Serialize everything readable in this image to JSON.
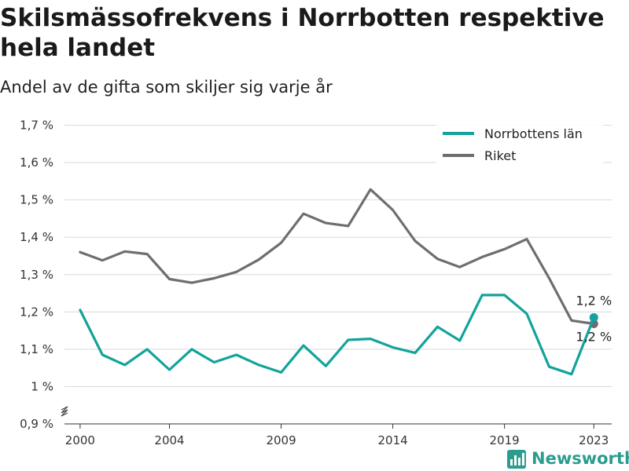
{
  "title": "Skilsmässofrekvens i Norrbotten respektive hela landet",
  "subtitle": "Andel av de gifta som skiljer sig varje år",
  "brand": {
    "name": "Newsworthy",
    "color": "#2a9d8f",
    "icon": "bar-chart-logo-icon"
  },
  "chart_data": {
    "type": "line",
    "title": "Skilsmässofrekvens i Norrbotten respektive hela landet",
    "subtitle": "Andel av de gifta som skiljer sig varje år",
    "xlabel": "",
    "ylabel": "",
    "xlim": [
      1999.3,
      2023.8
    ],
    "ylim": [
      0.9,
      1.72
    ],
    "x_ticks": [
      2000,
      2004,
      2009,
      2014,
      2019,
      2023
    ],
    "y_ticks": [
      {
        "value": 1.7,
        "label": "1,7 %"
      },
      {
        "value": 1.6,
        "label": "1,6 %"
      },
      {
        "value": 1.5,
        "label": "1,5 %"
      },
      {
        "value": 1.4,
        "label": "1,4 %"
      },
      {
        "value": 1.3,
        "label": "1,3 %"
      },
      {
        "value": 1.2,
        "label": "1,2 %"
      },
      {
        "value": 1.1,
        "label": "1,1 %"
      },
      {
        "value": 1.0,
        "label": "1 %"
      },
      {
        "value": 0.9,
        "label": "0,9 %"
      }
    ],
    "y_axis_break": true,
    "grid": "horizontal",
    "legend_position": "top-right",
    "x": [
      2000,
      2001,
      2002,
      2003,
      2004,
      2005,
      2006,
      2007,
      2008,
      2009,
      2010,
      2011,
      2012,
      2013,
      2014,
      2015,
      2016,
      2017,
      2018,
      2019,
      2020,
      2021,
      2022,
      2023
    ],
    "series": [
      {
        "name": "Norrbottens län",
        "color": "#12a39a",
        "values": [
          1.205,
          1.085,
          1.058,
          1.1,
          1.045,
          1.1,
          1.065,
          1.085,
          1.058,
          1.038,
          1.11,
          1.055,
          1.125,
          1.128,
          1.105,
          1.09,
          1.16,
          1.123,
          1.245,
          1.245,
          1.195,
          1.053,
          1.033,
          1.185
        ],
        "end_label": "1,2 %"
      },
      {
        "name": "Riket",
        "color": "#6e6e72",
        "values": [
          1.36,
          1.338,
          1.362,
          1.355,
          1.288,
          1.278,
          1.29,
          1.307,
          1.34,
          1.385,
          1.463,
          1.438,
          1.43,
          1.528,
          1.473,
          1.39,
          1.342,
          1.32,
          1.347,
          1.368,
          1.395,
          1.29,
          1.177,
          1.168
        ],
        "end_label": "1,2 %"
      }
    ]
  }
}
